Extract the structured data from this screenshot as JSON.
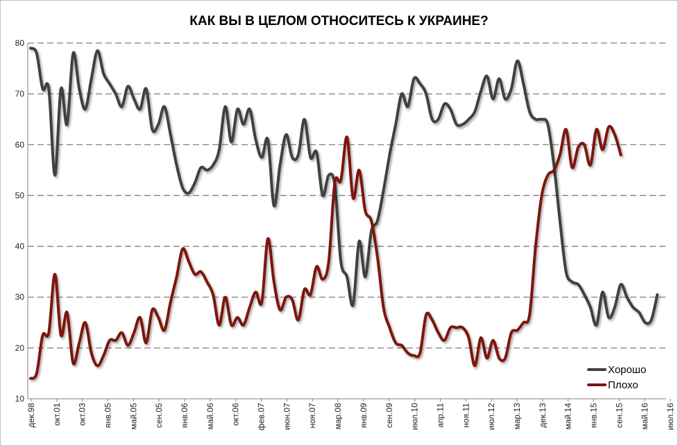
{
  "chart_data": {
    "type": "line",
    "title": "КАК ВЫ В ЦЕЛОМ ОТНОСИТЕСЬ К УКРАИНЕ?",
    "xlabel": "",
    "ylabel": "",
    "ylim": [
      10,
      80
    ],
    "yticks": [
      10,
      20,
      30,
      40,
      50,
      60,
      70,
      80
    ],
    "grid": true,
    "legend_position": "bottom-right",
    "x_ticks": [
      "дек.98",
      "окт.01",
      "окт.03",
      "янв.05",
      "май.05",
      "сен.05",
      "янв.06",
      "май.06",
      "окт.06",
      "фев.07",
      "июн.07",
      "ноя.07",
      "мар.08",
      "янв.09",
      "сен.09",
      "июл.10",
      "апр.11",
      "ноя.11",
      "июл.12",
      "мар.13",
      "дек.13",
      "май.14",
      "янв.15",
      "сен.15",
      "май.16",
      "июл.16"
    ],
    "series": [
      {
        "name": "Хорошо",
        "color": "#404040",
        "points": [
          [
            0,
            79
          ],
          [
            0.5,
            78
          ],
          [
            1,
            71
          ],
          [
            1.5,
            71
          ],
          [
            2,
            54
          ],
          [
            2.5,
            71
          ],
          [
            3,
            64
          ],
          [
            3.5,
            78
          ],
          [
            4,
            71
          ],
          [
            4.5,
            67
          ],
          [
            5,
            73
          ],
          [
            5.5,
            78.5
          ],
          [
            6,
            74
          ],
          [
            6.5,
            72
          ],
          [
            7,
            70
          ],
          [
            7.5,
            67.5
          ],
          [
            8,
            71.5
          ],
          [
            8.5,
            69
          ],
          [
            9,
            67
          ],
          [
            9.5,
            71
          ],
          [
            10,
            63
          ],
          [
            10.5,
            64
          ],
          [
            11,
            67.5
          ],
          [
            11.5,
            62
          ],
          [
            12,
            56
          ],
          [
            12.5,
            51.5
          ],
          [
            13,
            50.5
          ],
          [
            13.5,
            52.5
          ],
          [
            14,
            55.5
          ],
          [
            14.5,
            55
          ],
          [
            15,
            56
          ],
          [
            15.5,
            59
          ],
          [
            16,
            67.5
          ],
          [
            16.5,
            60.5
          ],
          [
            17,
            67
          ],
          [
            17.5,
            64
          ],
          [
            18,
            67
          ],
          [
            18.5,
            61
          ],
          [
            19,
            57.5
          ],
          [
            19.5,
            61
          ],
          [
            20,
            48
          ],
          [
            20.5,
            56
          ],
          [
            21,
            62
          ],
          [
            21.5,
            57.5
          ],
          [
            22,
            58
          ],
          [
            22.5,
            65
          ],
          [
            23,
            57.5
          ],
          [
            23.5,
            58.5
          ],
          [
            24,
            50
          ],
          [
            24.5,
            54
          ],
          [
            25,
            52
          ],
          [
            25.5,
            37
          ],
          [
            26,
            34
          ],
          [
            26.5,
            28.5
          ],
          [
            27,
            41
          ],
          [
            27.5,
            34
          ],
          [
            28,
            43
          ],
          [
            28.5,
            45
          ],
          [
            29,
            51
          ],
          [
            29.5,
            58
          ],
          [
            30,
            64
          ],
          [
            30.5,
            70
          ],
          [
            31,
            67.5
          ],
          [
            31.5,
            73
          ],
          [
            32,
            72
          ],
          [
            32.5,
            70
          ],
          [
            33,
            65
          ],
          [
            33.5,
            65
          ],
          [
            34,
            68
          ],
          [
            34.5,
            67
          ],
          [
            35,
            64
          ],
          [
            35.5,
            64
          ],
          [
            36,
            65
          ],
          [
            36.5,
            66.5
          ],
          [
            37,
            70.5
          ],
          [
            37.5,
            73.5
          ],
          [
            38,
            69
          ],
          [
            38.5,
            73
          ],
          [
            39,
            69
          ],
          [
            39.5,
            71
          ],
          [
            40,
            76.5
          ],
          [
            40.5,
            72
          ],
          [
            41,
            66.5
          ],
          [
            41.5,
            65
          ],
          [
            42,
            65
          ],
          [
            42.5,
            64
          ],
          [
            43,
            56
          ],
          [
            43.5,
            45
          ],
          [
            44,
            35
          ],
          [
            44.5,
            33
          ],
          [
            45,
            32.5
          ],
          [
            45.5,
            30.5
          ],
          [
            46,
            28
          ],
          [
            46.5,
            24.5
          ],
          [
            47,
            31
          ],
          [
            47.5,
            26
          ],
          [
            48,
            28
          ],
          [
            48.5,
            32.5
          ],
          [
            49,
            30
          ],
          [
            49.5,
            28
          ],
          [
            50,
            27
          ],
          [
            50.5,
            25
          ],
          [
            51,
            25.5
          ],
          [
            51.5,
            30.5
          ]
        ]
      },
      {
        "name": "Плохо",
        "color": "#7b1309",
        "points": [
          [
            0,
            14
          ],
          [
            0.5,
            15
          ],
          [
            1,
            22.5
          ],
          [
            1.5,
            23
          ],
          [
            2,
            34.5
          ],
          [
            2.5,
            22.5
          ],
          [
            3,
            27
          ],
          [
            3.5,
            17
          ],
          [
            4,
            21
          ],
          [
            4.5,
            25
          ],
          [
            5,
            19
          ],
          [
            5.5,
            16.5
          ],
          [
            6,
            18.5
          ],
          [
            6.5,
            21.5
          ],
          [
            7,
            21.5
          ],
          [
            7.5,
            23
          ],
          [
            8,
            20.5
          ],
          [
            8.5,
            23
          ],
          [
            9,
            26
          ],
          [
            9.5,
            21
          ],
          [
            10,
            27.5
          ],
          [
            10.5,
            26
          ],
          [
            11,
            23.5
          ],
          [
            11.5,
            29
          ],
          [
            12,
            34
          ],
          [
            12.5,
            39.5
          ],
          [
            13,
            37
          ],
          [
            13.5,
            34.5
          ],
          [
            14,
            35
          ],
          [
            14.5,
            33
          ],
          [
            15,
            30.5
          ],
          [
            15.5,
            24.5
          ],
          [
            16,
            30
          ],
          [
            16.5,
            24.5
          ],
          [
            17,
            26
          ],
          [
            17.5,
            24.5
          ],
          [
            18,
            28
          ],
          [
            18.5,
            31
          ],
          [
            19,
            29
          ],
          [
            19.5,
            41.5
          ],
          [
            20,
            33
          ],
          [
            20.5,
            27.5
          ],
          [
            21,
            30
          ],
          [
            21.5,
            29.5
          ],
          [
            22,
            25.5
          ],
          [
            22.5,
            31.5
          ],
          [
            23,
            30.5
          ],
          [
            23.5,
            36
          ],
          [
            24,
            33.5
          ],
          [
            24.5,
            37
          ],
          [
            25,
            52.5
          ],
          [
            25.5,
            53
          ],
          [
            26,
            61.5
          ],
          [
            26.5,
            49.5
          ],
          [
            27,
            55
          ],
          [
            27.5,
            47
          ],
          [
            28,
            45
          ],
          [
            28.5,
            38
          ],
          [
            29,
            28
          ],
          [
            29.5,
            24
          ],
          [
            30,
            21
          ],
          [
            30.5,
            20.5
          ],
          [
            31,
            19
          ],
          [
            31.5,
            18.5
          ],
          [
            32,
            19
          ],
          [
            32.5,
            26.5
          ],
          [
            33,
            25.5
          ],
          [
            33.5,
            23
          ],
          [
            34,
            21.5
          ],
          [
            34.5,
            24
          ],
          [
            35,
            24
          ],
          [
            35.5,
            24
          ],
          [
            36,
            22
          ],
          [
            36.5,
            16.5
          ],
          [
            37,
            22
          ],
          [
            37.5,
            18
          ],
          [
            38,
            21.5
          ],
          [
            38.5,
            18
          ],
          [
            39,
            18
          ],
          [
            39.5,
            23
          ],
          [
            40,
            23.5
          ],
          [
            40.5,
            25
          ],
          [
            41,
            26.5
          ],
          [
            41.5,
            40
          ],
          [
            42,
            50
          ],
          [
            42.5,
            54
          ],
          [
            43,
            55
          ],
          [
            43.5,
            58
          ],
          [
            44,
            63
          ],
          [
            44.5,
            55.5
          ],
          [
            45,
            59.5
          ],
          [
            45.5,
            60
          ],
          [
            46,
            56
          ],
          [
            46.5,
            63
          ],
          [
            47,
            59
          ],
          [
            47.5,
            63.5
          ],
          [
            48,
            62
          ],
          [
            48.5,
            58
          ]
        ]
      }
    ]
  }
}
